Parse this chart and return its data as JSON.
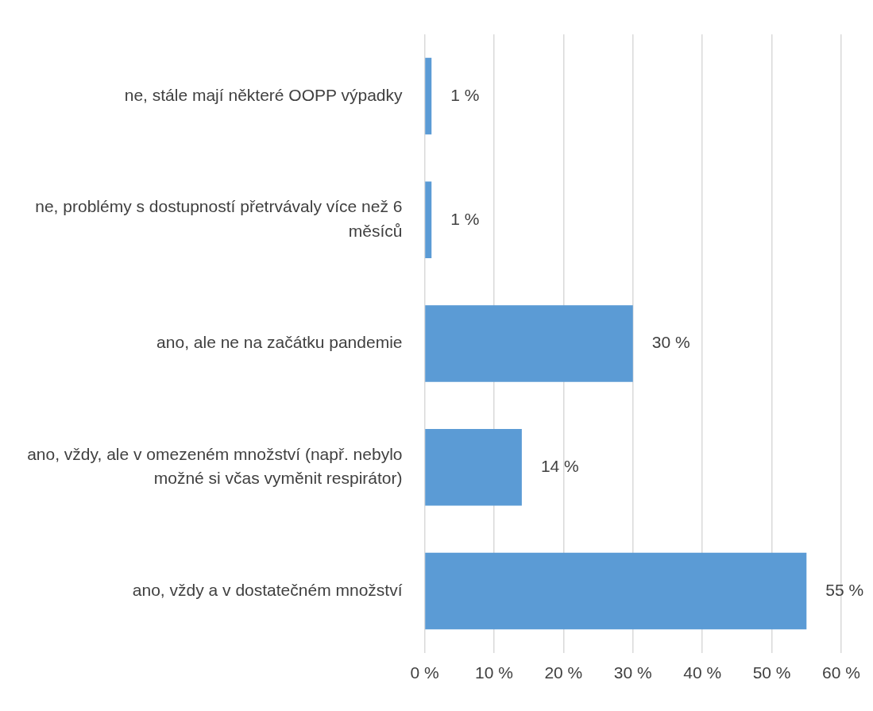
{
  "chart_data": {
    "type": "bar",
    "orientation": "horizontal",
    "categories": [
      "ne, stále mají některé OOPP výpadky",
      "ne, problémy s dostupností přetrvávaly více než 6 měsíců",
      "ano, ale ne na začátku pandemie",
      "ano, vždy, ale v omezeném množství (např. nebylo možné si včas vyměnit respirátor)",
      "ano, vždy a v dostatečném množství"
    ],
    "values": [
      1,
      1,
      30,
      14,
      55
    ],
    "value_labels": [
      "1 %",
      "1 %",
      "30 %",
      "14 %",
      "55 %"
    ],
    "color": "#5b9bd5",
    "xlim": [
      0,
      60
    ],
    "xticks": [
      {
        "value": 0,
        "label": "0 %"
      },
      {
        "value": 10,
        "label": "10 %"
      },
      {
        "value": 20,
        "label": "20 %"
      },
      {
        "value": 30,
        "label": "30 %"
      },
      {
        "value": 40,
        "label": "40 %"
      },
      {
        "value": 50,
        "label": "50 %"
      },
      {
        "value": 60,
        "label": "60 %"
      }
    ],
    "grid": "x",
    "legend": false
  }
}
